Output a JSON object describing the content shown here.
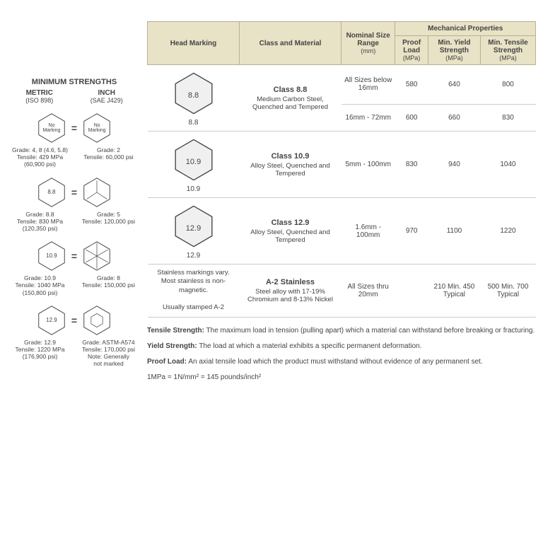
{
  "left": {
    "title": "MINIMUM STRENGTHS",
    "metric": {
      "name": "METRIC",
      "sub": "(ISO 898)"
    },
    "inch": {
      "name": "INCH",
      "sub": "(SAE J429)"
    },
    "rows": [
      {
        "metric_mark": "No\nMarking",
        "inch_mark": "No\nMarking",
        "inch_lines": 0,
        "metric_info": "Grade: 4, 8 (4.6, 5.8)\nTensile: 429 MPa\n(60,900 psi)",
        "inch_info": "Grade: 2\nTensile: 60,000 psi"
      },
      {
        "metric_mark": "8.8",
        "inch_mark": "",
        "inch_lines": 3,
        "metric_info": "Grade: 8.8\nTensile: 830 MPa\n(120,350 psi)",
        "inch_info": "Grade: 5\nTensile: 120,000 psi"
      },
      {
        "metric_mark": "10.9",
        "inch_mark": "",
        "inch_lines": 6,
        "metric_info": "Grade: 10.9\nTensile: 1040 MPa\n(150,800 psi)",
        "inch_info": "Grade: 8\nTensile: 150,000 psi"
      },
      {
        "metric_mark": "12.9",
        "inch_mark": "",
        "inch_socket": true,
        "metric_info": "Grade: 12.9\nTensile: 1220 MPa\n(176,900 psi)",
        "inch_info": "Grade: ASTM-A574\nTensile: 170,000 psi\nNote: Generally\nnot marked"
      }
    ]
  },
  "table": {
    "headers": {
      "head_marking": "Head Marking",
      "class": "Class and Material",
      "size": "Nominal Size Range",
      "size_unit": "(mm)",
      "mech": "Mechanical Properties",
      "proof": "Proof Load",
      "yield": "Min. Yield Strength",
      "tensile": "Min. Tensile Strength",
      "unit": "(MPa)"
    },
    "rows": [
      {
        "mark": "8.8",
        "class": "Class 8.8",
        "desc": "Medium Carbon Steel, Quenched and Tempered",
        "sub": [
          {
            "size": "All Sizes below 16mm",
            "proof": "580",
            "yield": "640",
            "tensile": "800"
          },
          {
            "size": "16mm - 72mm",
            "proof": "600",
            "yield": "660",
            "tensile": "830"
          }
        ]
      },
      {
        "mark": "10.9",
        "class": "Class 10.9",
        "desc": "Alloy Steel, Quenched and Tempered",
        "sub": [
          {
            "size": "5mm - 100mm",
            "proof": "830",
            "yield": "940",
            "tensile": "1040"
          }
        ]
      },
      {
        "mark": "12.9",
        "class": "Class 12.9",
        "desc": "Alloy Steel, Quenched and Tempered",
        "sub": [
          {
            "size": "1.6mm - 100mm",
            "proof": "970",
            "yield": "1100",
            "tensile": "1220"
          }
        ]
      },
      {
        "stainless_note": "Stainless markings vary. Most stainless is non-magnetic.\n\nUsually stamped A-2",
        "class": "A-2 Stainless",
        "desc": "Steel alloy with 17-19% Chromium and 8-13% Nickel",
        "sub": [
          {
            "size": "All Sizes thru 20mm",
            "proof": "",
            "yield": "210 Min. 450 Typical",
            "tensile": "500 Min. 700 Typical"
          }
        ]
      }
    ]
  },
  "defs": {
    "tensile_label": "Tensile Strength:",
    "tensile": "The maximum load in tension (pulling apart) which a material can withstand before breaking or fracturing.",
    "yield_label": "Yield Strength:",
    "yield": "The load at which a material exhibits a specific permanent deformation.",
    "proof_label": "Proof Load:",
    "proof": "An axial tensile load which the product must withstand without evidence of any permanent set.",
    "conv": "1MPa = 1N/mm² = 145 pounds/inch²"
  },
  "colors": {
    "header_bg": "#e8e2c6",
    "header_border": "#b8b090",
    "hex_fill": "#f0f0f0",
    "hex_stroke": "#444"
  }
}
